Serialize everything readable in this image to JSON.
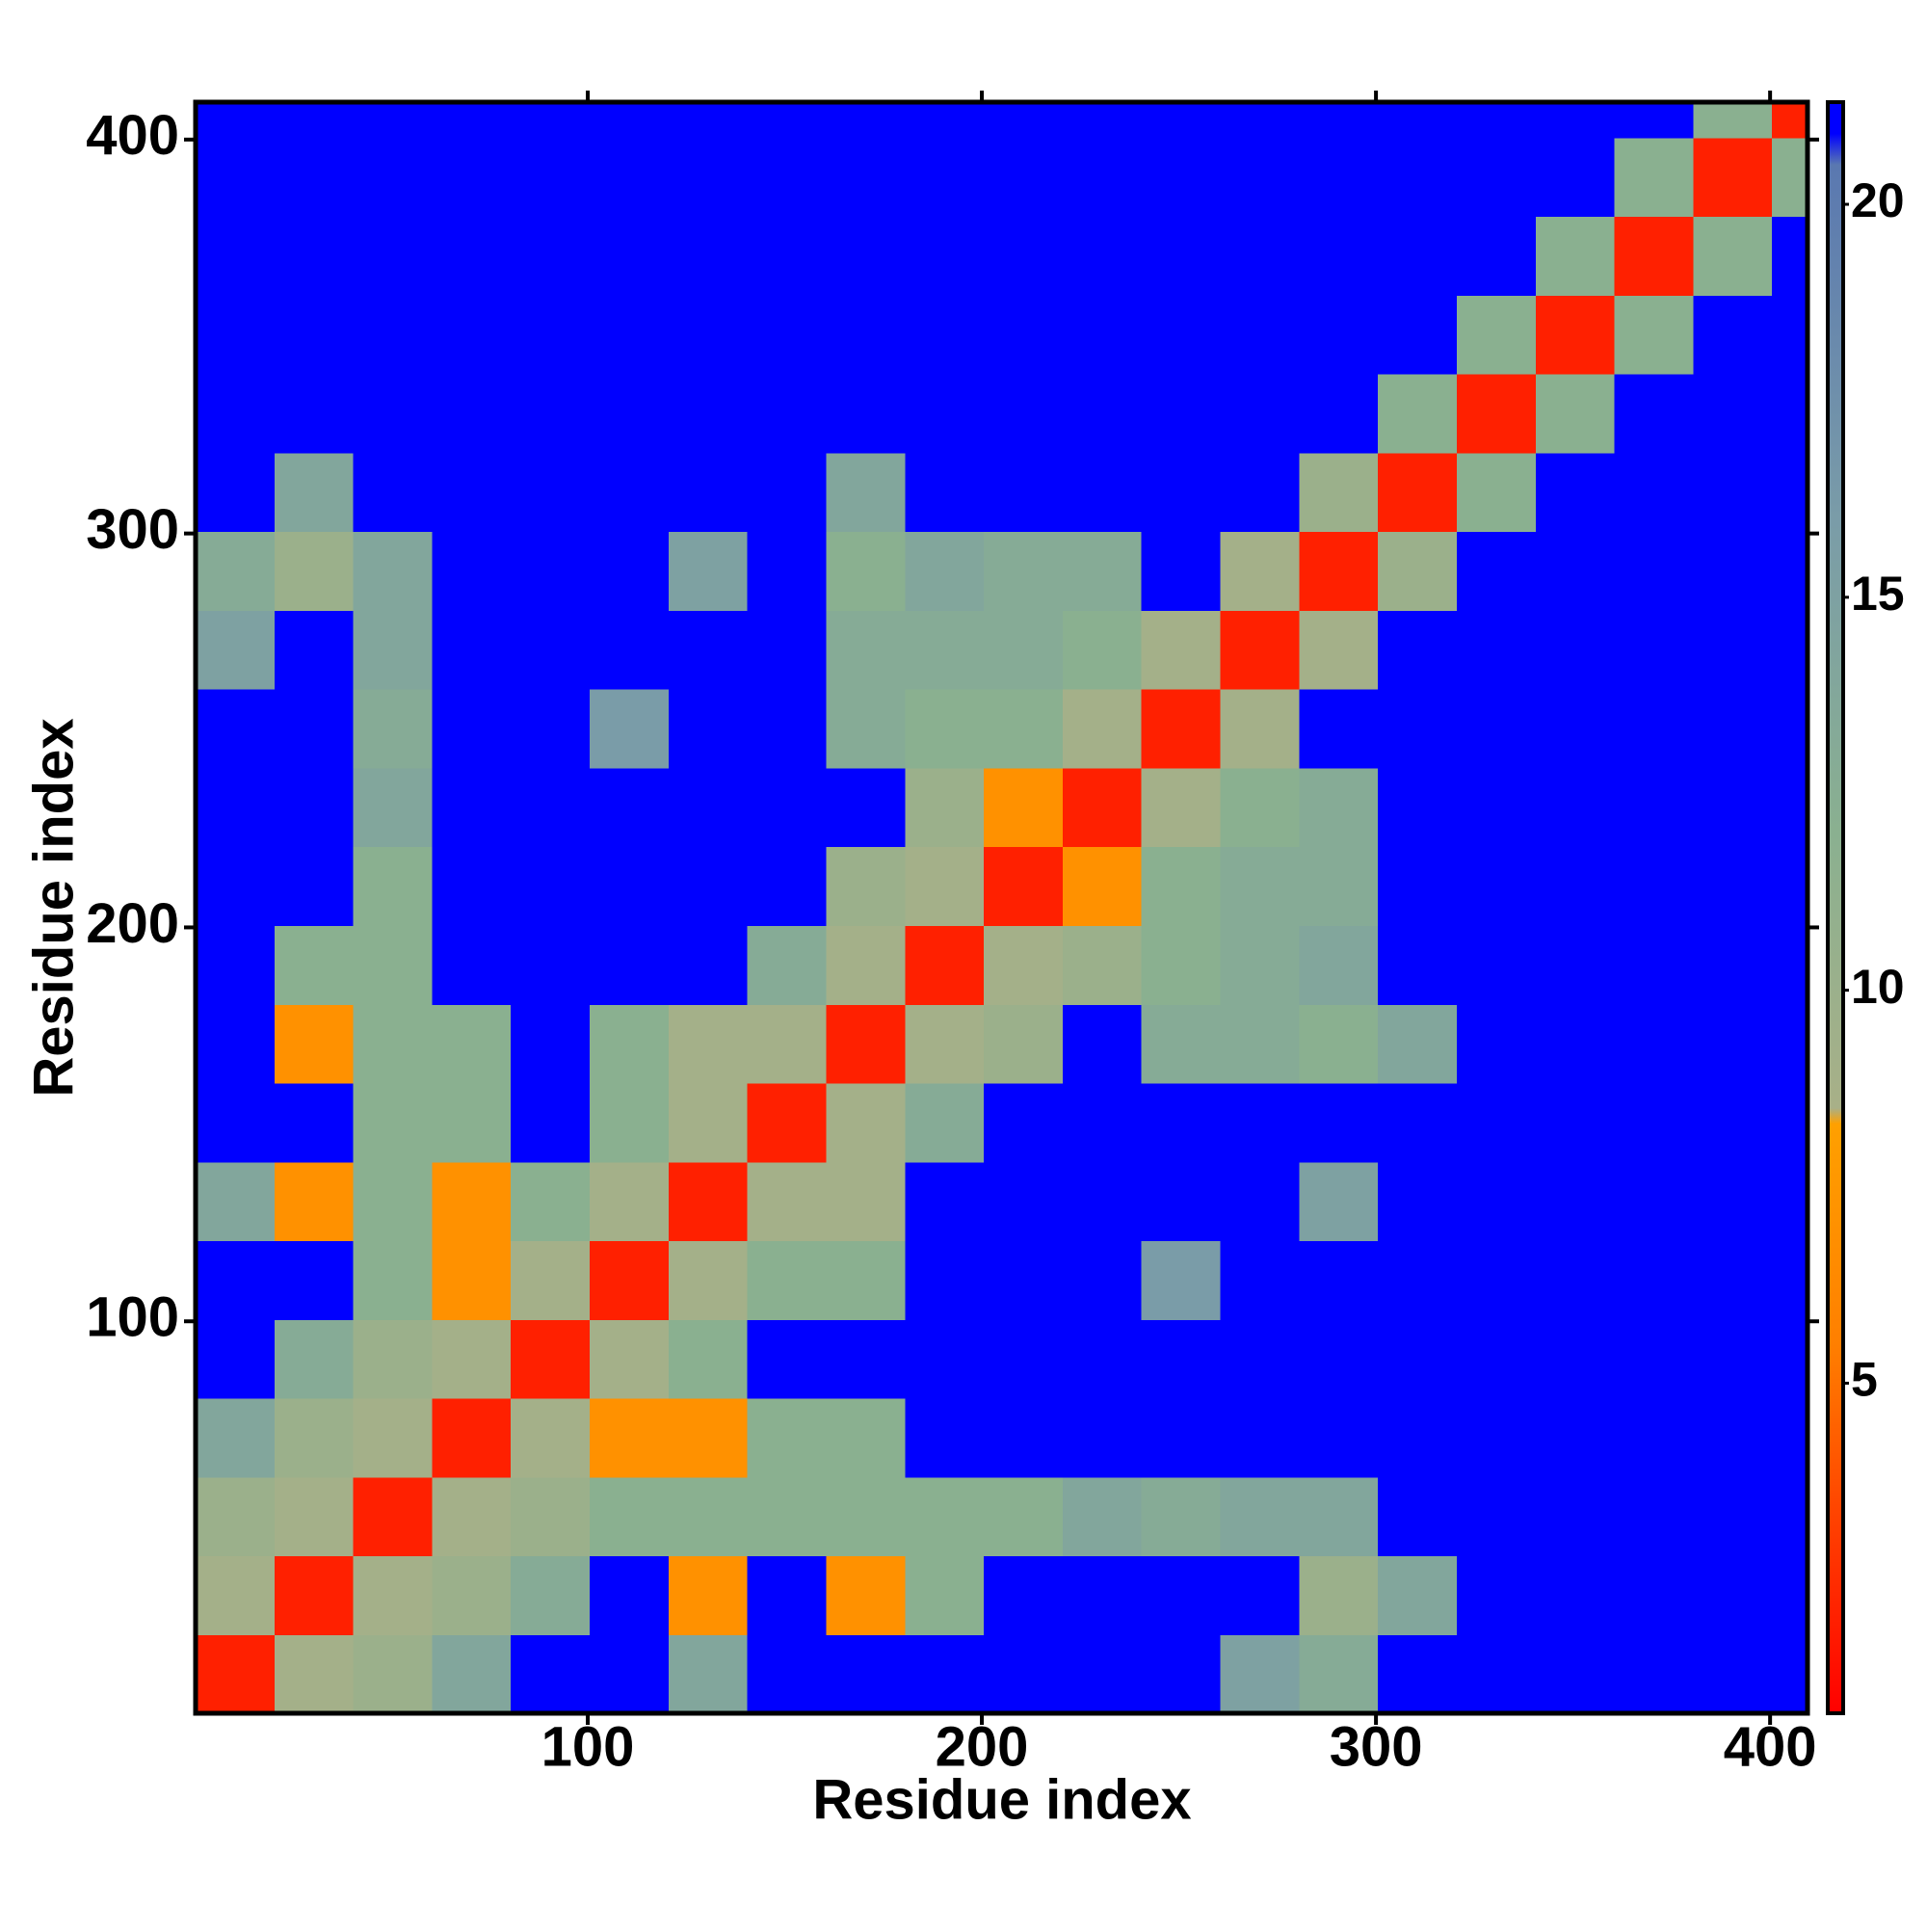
{
  "chart_data": {
    "type": "heatmap",
    "x_label": "Residue index",
    "y_label": "Residue index",
    "xlim": [
      0.5,
      409.5
    ],
    "ylim": [
      0.5,
      409.5
    ],
    "xticks": [
      100,
      200,
      300,
      400
    ],
    "yticks": [
      100,
      200,
      300,
      400
    ],
    "bins": [
      0.5,
      20.5,
      40.5,
      60.5,
      80.5,
      100.5,
      120.5,
      140.5,
      160.5,
      180.5,
      200.5,
      220.5,
      240.5,
      260.5,
      280.5,
      300.5,
      320.5,
      340.5,
      360.5,
      380.5,
      400.5,
      409.5
    ],
    "z": [
      [
        2,
        9,
        10,
        14,
        21,
        21,
        14,
        21,
        21,
        21,
        21,
        21,
        21,
        15,
        13,
        21,
        21,
        21,
        21,
        21,
        21
      ],
      [
        9,
        2,
        9,
        10,
        13,
        21,
        7,
        21,
        7,
        12,
        21,
        21,
        21,
        21,
        10,
        14,
        21,
        21,
        21,
        21,
        21
      ],
      [
        10,
        9,
        2,
        9,
        10,
        12,
        12,
        12,
        12,
        12,
        12,
        14,
        13,
        14,
        14,
        21,
        21,
        21,
        21,
        21,
        21
      ],
      [
        14,
        10,
        9,
        2,
        9,
        7,
        7,
        12,
        12,
        21,
        21,
        21,
        21,
        21,
        21,
        21,
        21,
        21,
        21,
        21,
        21
      ],
      [
        21,
        13,
        10,
        9,
        2,
        9,
        12,
        21,
        21,
        21,
        21,
        21,
        21,
        21,
        21,
        21,
        21,
        21,
        21,
        21,
        21
      ],
      [
        21,
        21,
        12,
        7,
        9,
        2,
        9,
        12,
        12,
        21,
        21,
        21,
        16,
        21,
        21,
        21,
        21,
        21,
        21,
        21,
        21
      ],
      [
        14,
        7,
        12,
        7,
        12,
        9,
        2,
        9,
        9,
        21,
        21,
        21,
        21,
        21,
        15,
        21,
        21,
        21,
        21,
        21,
        21
      ],
      [
        21,
        21,
        12,
        12,
        21,
        12,
        9,
        2,
        9,
        13,
        21,
        21,
        21,
        21,
        21,
        21,
        21,
        21,
        21,
        21,
        21
      ],
      [
        21,
        7,
        12,
        12,
        21,
        12,
        9,
        9,
        2,
        9,
        10,
        21,
        13,
        13,
        12,
        14,
        21,
        21,
        21,
        21,
        21
      ],
      [
        21,
        12,
        12,
        21,
        21,
        21,
        21,
        13,
        9,
        2,
        9,
        10,
        12,
        13,
        14,
        21,
        21,
        21,
        21,
        21,
        21
      ],
      [
        21,
        21,
        12,
        21,
        21,
        21,
        21,
        21,
        10,
        9,
        2,
        7,
        12,
        13,
        13,
        21,
        21,
        21,
        21,
        21,
        21
      ],
      [
        21,
        21,
        14,
        21,
        21,
        21,
        21,
        21,
        21,
        10,
        7,
        2,
        9,
        12,
        13,
        21,
        21,
        21,
        21,
        21,
        21
      ],
      [
        21,
        21,
        13,
        21,
        21,
        16,
        21,
        21,
        13,
        12,
        12,
        9,
        2,
        9,
        21,
        21,
        21,
        21,
        21,
        21,
        21
      ],
      [
        15,
        21,
        14,
        21,
        21,
        21,
        21,
        21,
        13,
        13,
        13,
        12,
        9,
        2,
        9,
        21,
        21,
        21,
        21,
        21,
        21
      ],
      [
        13,
        10,
        14,
        21,
        21,
        21,
        15,
        21,
        12,
        14,
        13,
        13,
        21,
        9,
        2,
        10,
        21,
        21,
        21,
        21,
        21
      ],
      [
        21,
        14,
        21,
        21,
        21,
        21,
        21,
        21,
        14,
        21,
        21,
        21,
        21,
        21,
        10,
        2,
        12,
        21,
        21,
        21,
        21
      ],
      [
        21,
        21,
        21,
        21,
        21,
        21,
        21,
        21,
        21,
        21,
        21,
        21,
        21,
        21,
        21,
        12,
        2,
        12,
        21,
        21,
        21
      ],
      [
        21,
        21,
        21,
        21,
        21,
        21,
        21,
        21,
        21,
        21,
        21,
        21,
        21,
        21,
        21,
        21,
        12,
        2,
        12,
        21,
        21
      ],
      [
        21,
        21,
        21,
        21,
        21,
        21,
        21,
        21,
        21,
        21,
        21,
        21,
        21,
        21,
        21,
        21,
        21,
        12,
        2,
        12,
        21
      ],
      [
        21,
        21,
        21,
        21,
        21,
        21,
        21,
        21,
        21,
        21,
        21,
        21,
        21,
        21,
        21,
        21,
        21,
        21,
        12,
        2,
        12
      ],
      [
        21,
        21,
        21,
        21,
        21,
        21,
        21,
        21,
        21,
        21,
        21,
        21,
        21,
        21,
        21,
        21,
        21,
        21,
        21,
        12,
        2
      ]
    ],
    "colorbar": {
      "lim": [
        0.8,
        21.3
      ],
      "ticks": [
        5,
        10,
        15,
        20
      ]
    },
    "colorscale": [
      {
        "value": 0.8,
        "color": "#ff0000"
      },
      {
        "value": 3,
        "color": "#ff3a00"
      },
      {
        "value": 5.5,
        "color": "#ff7f00"
      },
      {
        "value": 8.3,
        "color": "#ffa000"
      },
      {
        "value": 8.5,
        "color": "#a8b088"
      },
      {
        "value": 12,
        "color": "#8ab090"
      },
      {
        "value": 16,
        "color": "#7a9ca8"
      },
      {
        "value": 20.5,
        "color": "#5a78b0"
      },
      {
        "value": 20.9,
        "color": "#0000ff"
      },
      {
        "value": 21.3,
        "color": "#0000ff"
      }
    ]
  }
}
